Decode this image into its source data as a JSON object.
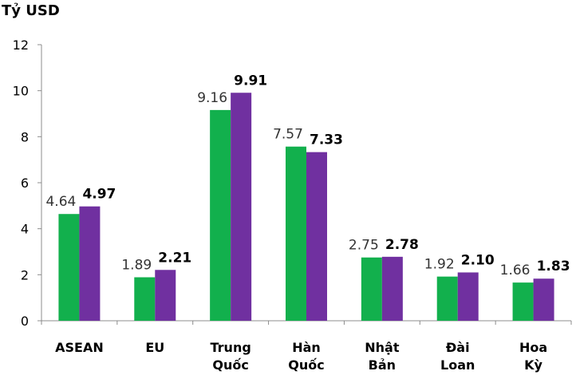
{
  "chart_data": {
    "type": "bar",
    "unit_label": "Tỷ USD",
    "categories": [
      [
        "ASEAN"
      ],
      [
        "EU"
      ],
      [
        "Trung",
        "Quốc"
      ],
      [
        "Hàn",
        "Quốc"
      ],
      [
        "Nhật",
        "Bản"
      ],
      [
        "Đài",
        "Loan"
      ],
      [
        "Hoa",
        "Kỳ"
      ]
    ],
    "series": [
      {
        "color": "#12b04d",
        "values": [
          4.64,
          1.89,
          9.16,
          7.57,
          2.75,
          1.92,
          1.66
        ],
        "labels": [
          "4.64",
          "1.89",
          "9.16",
          "7.57",
          "2.75",
          "1.92",
          "1.66"
        ]
      },
      {
        "color": "#7030a0",
        "values": [
          4.97,
          2.21,
          9.91,
          7.33,
          2.78,
          2.1,
          1.83
        ],
        "labels": [
          "4.97",
          "2.21",
          "9.91",
          "7.33",
          "2.78",
          "2.10",
          "1.83"
        ]
      }
    ],
    "ylim": [
      0,
      12
    ],
    "yticks": [
      "0",
      "2",
      "4",
      "6",
      "8",
      "10",
      "12"
    ],
    "grid": false,
    "legend": "none"
  }
}
